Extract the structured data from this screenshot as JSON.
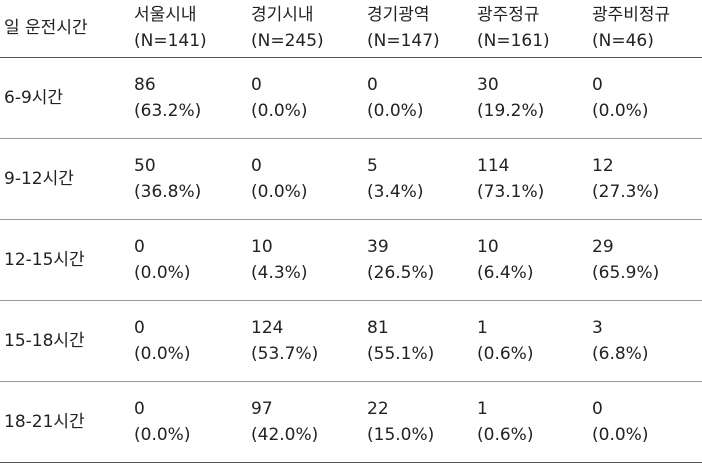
{
  "table": {
    "headers": [
      {
        "name": "일 운전시간",
        "n": ""
      },
      {
        "name": "서울시내",
        "n": "(N=141)"
      },
      {
        "name": "경기시내",
        "n": "(N=245)"
      },
      {
        "name": "경기광역",
        "n": "(N=147)"
      },
      {
        "name": "광주정규",
        "n": "(N=161)"
      },
      {
        "name": "광주비정규",
        "n": "(N=46)"
      }
    ],
    "rows": [
      {
        "label": "6-9시간",
        "cells": [
          {
            "count": "86",
            "pct": "(63.2%)"
          },
          {
            "count": "0",
            "pct": "(0.0%)"
          },
          {
            "count": "0",
            "pct": "(0.0%)"
          },
          {
            "count": "30",
            "pct": "(19.2%)"
          },
          {
            "count": "0",
            "pct": "(0.0%)"
          }
        ]
      },
      {
        "label": "9-12시간",
        "cells": [
          {
            "count": "50",
            "pct": "(36.8%)"
          },
          {
            "count": "0",
            "pct": "(0.0%)"
          },
          {
            "count": "5",
            "pct": "(3.4%)"
          },
          {
            "count": "114",
            "pct": "(73.1%)"
          },
          {
            "count": "12",
            "pct": "(27.3%)"
          }
        ]
      },
      {
        "label": "12-15시간",
        "cells": [
          {
            "count": "0",
            "pct": "(0.0%)"
          },
          {
            "count": "10",
            "pct": "(4.3%)"
          },
          {
            "count": "39",
            "pct": "(26.5%)"
          },
          {
            "count": "10",
            "pct": "(6.4%)"
          },
          {
            "count": "29",
            "pct": "(65.9%)"
          }
        ]
      },
      {
        "label": "15-18시간",
        "cells": [
          {
            "count": "0",
            "pct": "(0.0%)"
          },
          {
            "count": "124",
            "pct": "(53.7%)"
          },
          {
            "count": "81",
            "pct": "(55.1%)"
          },
          {
            "count": "1",
            "pct": "(0.6%)"
          },
          {
            "count": "3",
            "pct": "(6.8%)"
          }
        ]
      },
      {
        "label": "18-21시간",
        "cells": [
          {
            "count": "0",
            "pct": "(0.0%)"
          },
          {
            "count": "97",
            "pct": "(42.0%)"
          },
          {
            "count": "22",
            "pct": "(15.0%)"
          },
          {
            "count": "1",
            "pct": "(0.6%)"
          },
          {
            "count": "0",
            "pct": "(0.0%)"
          }
        ]
      }
    ]
  }
}
